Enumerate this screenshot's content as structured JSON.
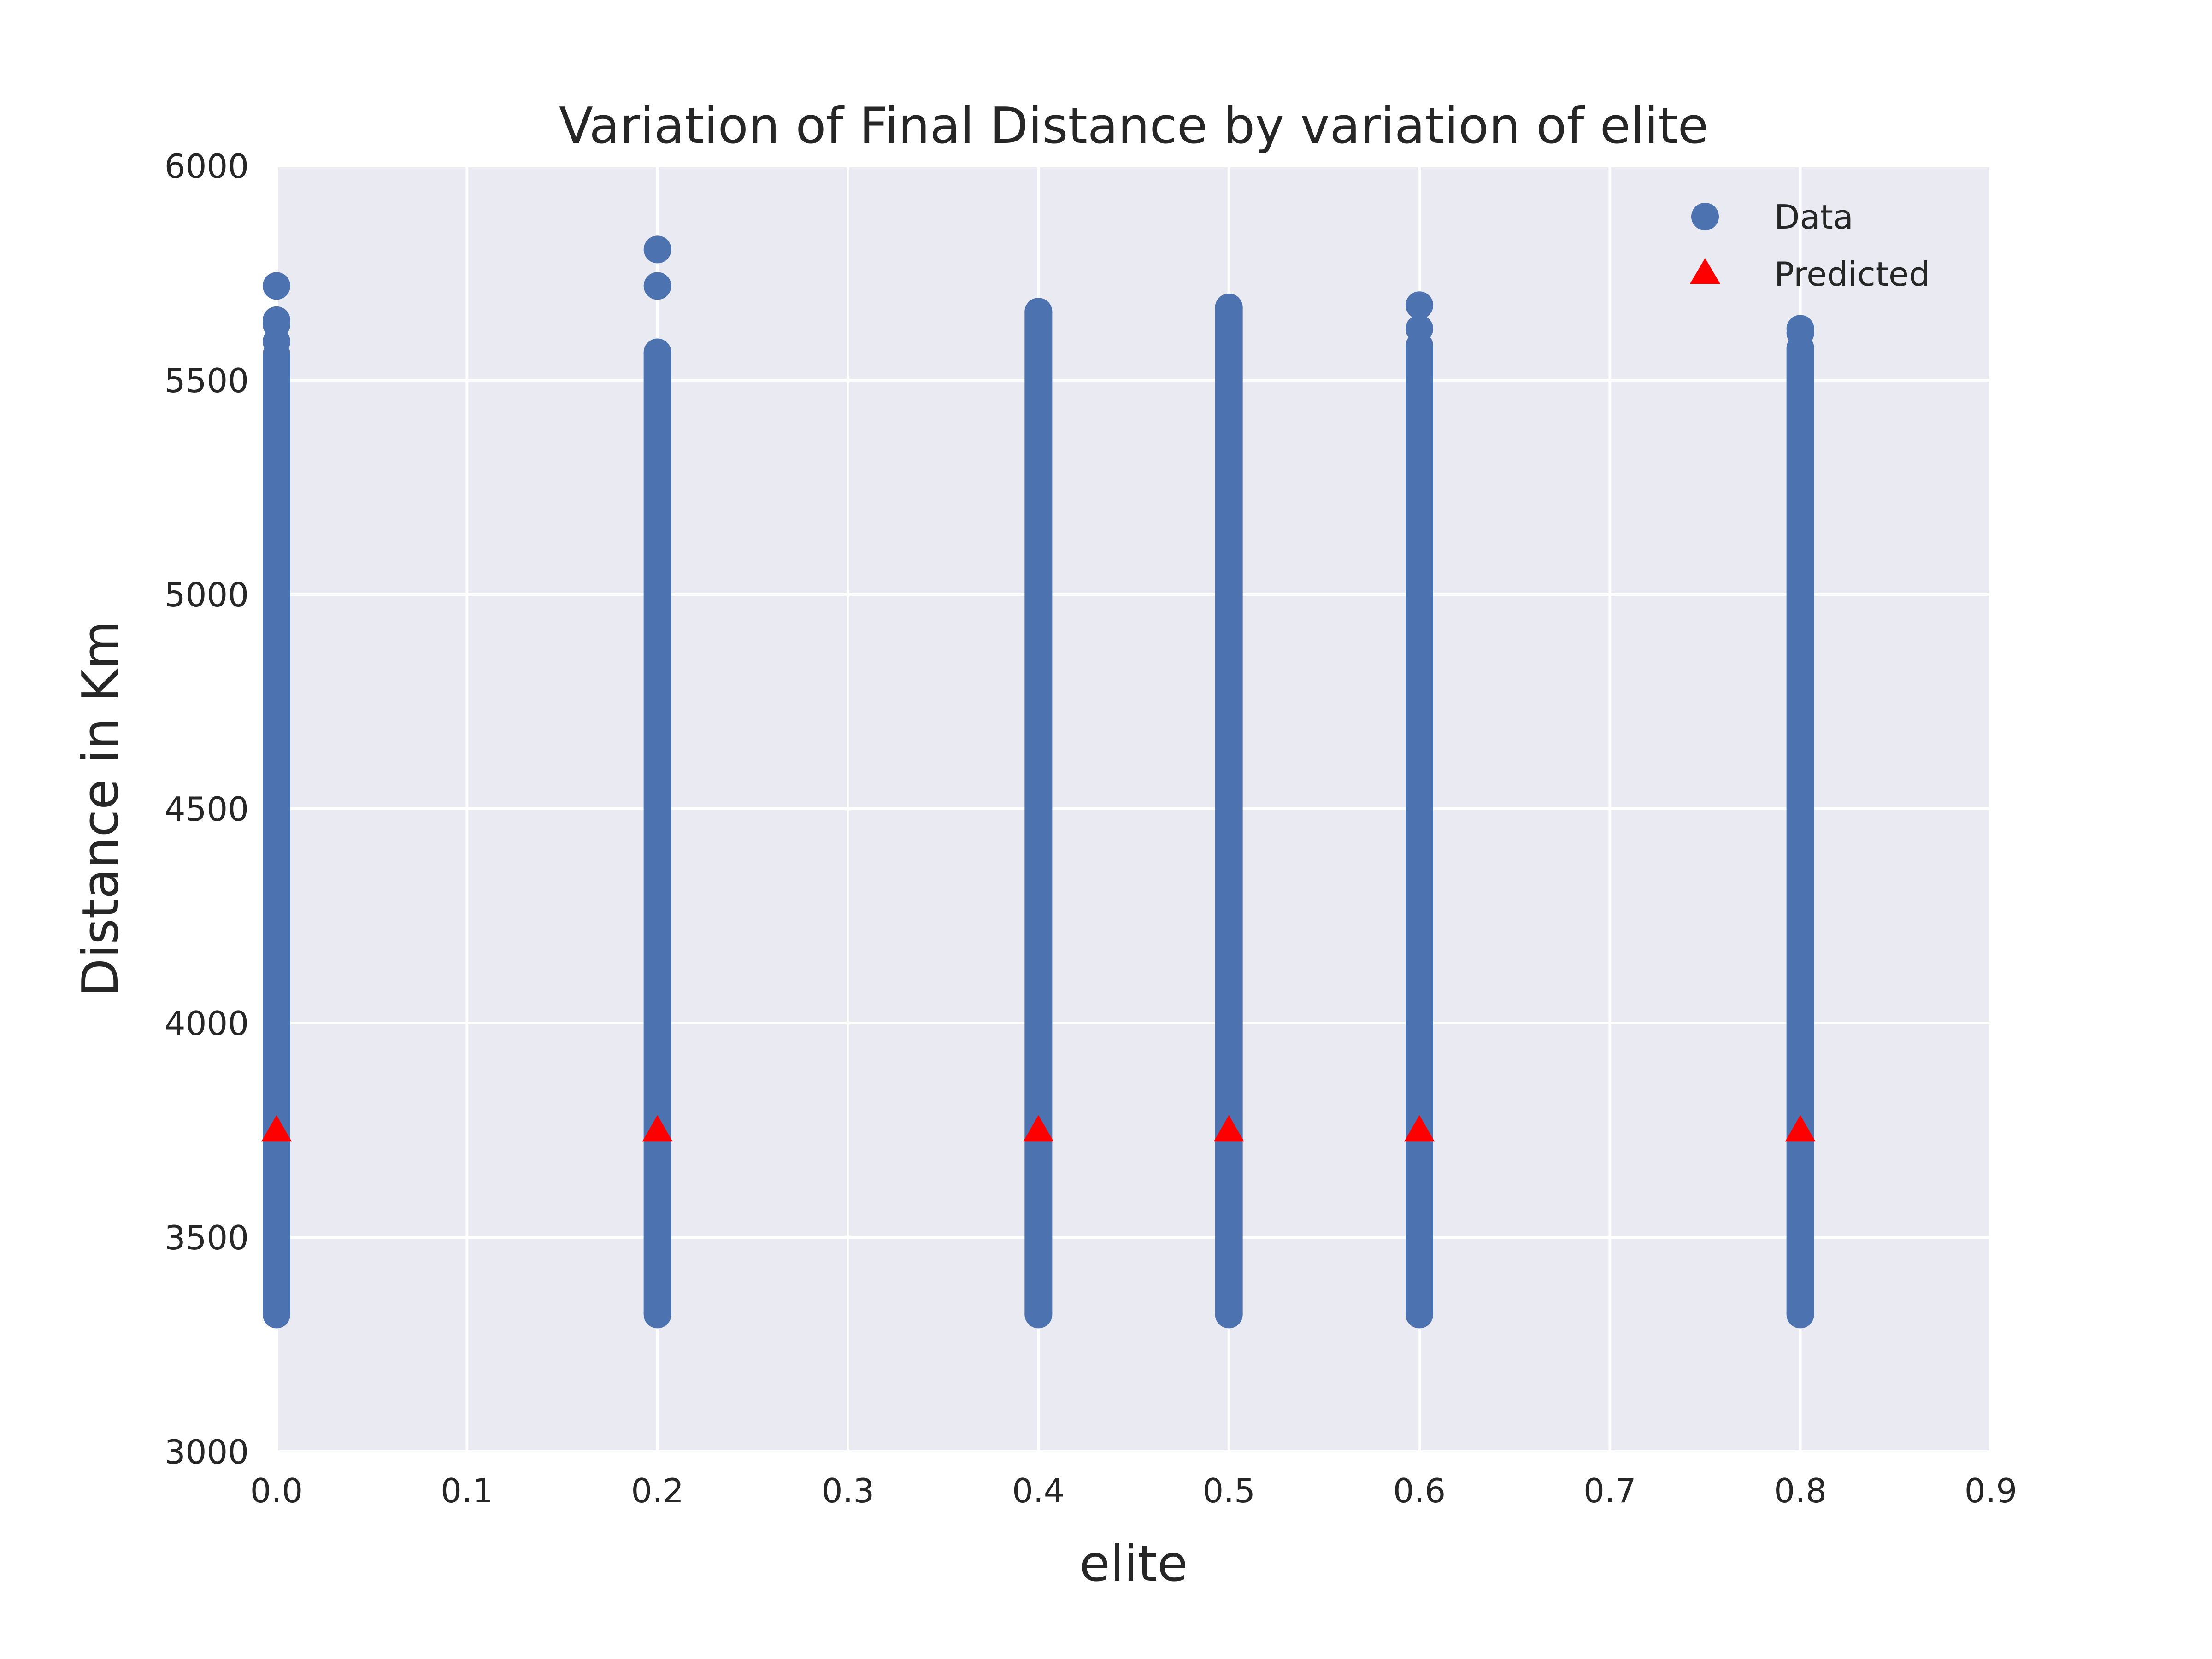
{
  "chart_data": {
    "type": "scatter",
    "title": "Variation of Final Distance by variation of elite",
    "xlabel": "elite",
    "ylabel": "Distance in Km",
    "xlim": [
      0.0,
      0.9
    ],
    "ylim": [
      3000,
      6000
    ],
    "xticks": [
      "0.0",
      "0.1",
      "0.2",
      "0.3",
      "0.4",
      "0.5",
      "0.6",
      "0.7",
      "0.8",
      "0.9"
    ],
    "yticks": [
      "3000",
      "3500",
      "4000",
      "4500",
      "5000",
      "5500",
      "6000"
    ],
    "grid": true,
    "legend_position": "top-right",
    "background_color": "#eaeaf2",
    "series": [
      {
        "name": "Data",
        "marker": "circle",
        "color": "#4c72b0",
        "points": [
          {
            "x": 0.0,
            "y_min": 3320,
            "y_max": 5560,
            "outliers": [
              5590,
              5630,
              5640,
              5720
            ]
          },
          {
            "x": 0.2,
            "y_min": 3320,
            "y_max": 5565,
            "outliers": [
              5720,
              5805
            ]
          },
          {
            "x": 0.4,
            "y_min": 3320,
            "y_max": 5660,
            "outliers": []
          },
          {
            "x": 0.5,
            "y_min": 3320,
            "y_max": 5670,
            "outliers": []
          },
          {
            "x": 0.6,
            "y_min": 3320,
            "y_max": 5580,
            "outliers": [
              5620,
              5675
            ]
          },
          {
            "x": 0.8,
            "y_min": 3320,
            "y_max": 5575,
            "outliers": [
              5610,
              5620
            ]
          }
        ]
      },
      {
        "name": "Predicted",
        "marker": "triangle",
        "color": "#ff0000",
        "x": [
          0.0,
          0.2,
          0.4,
          0.5,
          0.6,
          0.8
        ],
        "y": [
          3750,
          3750,
          3750,
          3750,
          3750,
          3750
        ]
      }
    ]
  }
}
